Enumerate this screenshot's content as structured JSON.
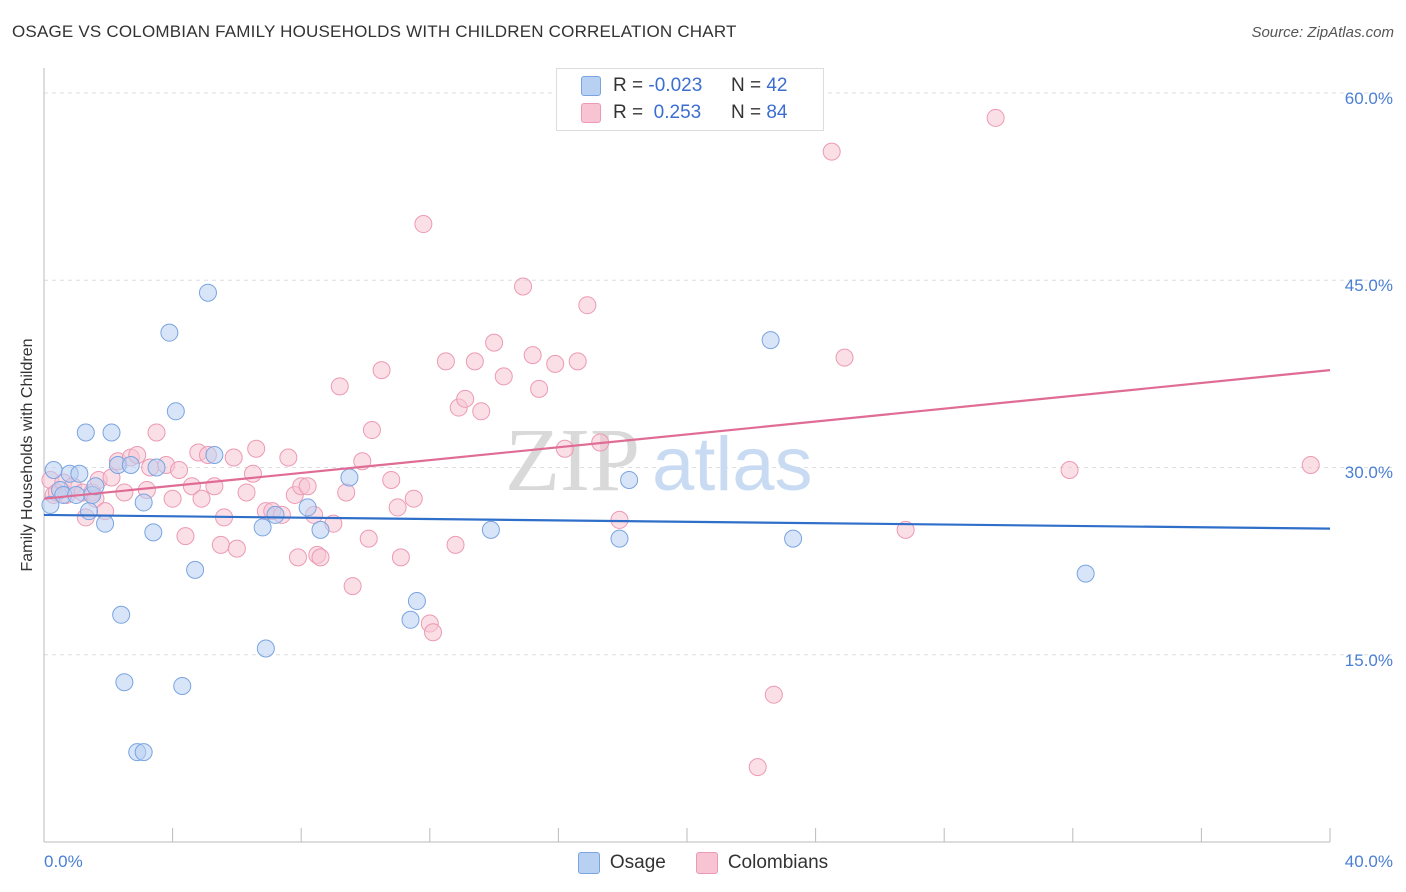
{
  "header": {
    "title": "OSAGE VS COLOMBIAN FAMILY HOUSEHOLDS WITH CHILDREN CORRELATION CHART",
    "source": "Source: ZipAtlas.com"
  },
  "legend_top": {
    "rows": [
      {
        "r_label": "R = ",
        "r_value": "-0.023",
        "n_label": "N = ",
        "n_value": "42"
      },
      {
        "r_label": "R = ",
        "r_value": " 0.253",
        "n_label": "N = ",
        "n_value": "84"
      }
    ]
  },
  "legend_bottom": {
    "osage": "Osage",
    "colombians": "Colombians"
  },
  "watermark": {
    "zip": "ZIP",
    "atlas": "atlas"
  },
  "colors": {
    "osage_fill": "#b8d0f2",
    "osage_stroke": "#7aa4e0",
    "osage_line": "#2f6fc9",
    "colombian_fill": "#f8c4d4",
    "colombian_stroke": "#ec9ab4",
    "colombian_line": "#e06c96",
    "axis_label": "#4a7fd4"
  },
  "chart_data": {
    "type": "scatter",
    "title": "OSAGE VS COLOMBIAN FAMILY HOUSEHOLDS WITH CHILDREN CORRELATION CHART",
    "xlabel": "",
    "ylabel": "Family Households with Children",
    "xlim": [
      0,
      40
    ],
    "ylim": [
      0,
      62
    ],
    "x_tick_labels": [
      "0.0%",
      "40.0%"
    ],
    "y_ticks": [
      15,
      30,
      45,
      60
    ],
    "y_tick_labels": [
      "15.0%",
      "30.0%",
      "45.0%",
      "60.0%"
    ],
    "grid": true,
    "legend_position": "top-center",
    "series": [
      {
        "name": "Osage",
        "r": -0.023,
        "n": 42,
        "trend": {
          "x": [
            0,
            40
          ],
          "y": [
            26.2,
            25.1
          ]
        },
        "points": [
          [
            0.2,
            27.0
          ],
          [
            0.3,
            29.8
          ],
          [
            0.5,
            28.2
          ],
          [
            0.6,
            27.8
          ],
          [
            0.8,
            29.5
          ],
          [
            1.0,
            27.8
          ],
          [
            1.1,
            29.5
          ],
          [
            1.3,
            32.8
          ],
          [
            1.4,
            26.5
          ],
          [
            1.5,
            27.8
          ],
          [
            1.6,
            28.5
          ],
          [
            1.9,
            25.5
          ],
          [
            2.1,
            32.8
          ],
          [
            2.3,
            30.2
          ],
          [
            2.4,
            18.2
          ],
          [
            2.5,
            12.8
          ],
          [
            2.7,
            30.2
          ],
          [
            2.9,
            7.2
          ],
          [
            3.1,
            7.2
          ],
          [
            3.1,
            27.2
          ],
          [
            3.4,
            24.8
          ],
          [
            3.5,
            30.0
          ],
          [
            3.9,
            40.8
          ],
          [
            4.1,
            34.5
          ],
          [
            4.3,
            12.5
          ],
          [
            4.7,
            21.8
          ],
          [
            5.1,
            44.0
          ],
          [
            5.3,
            31.0
          ],
          [
            6.8,
            25.2
          ],
          [
            6.9,
            15.5
          ],
          [
            7.2,
            26.2
          ],
          [
            8.2,
            26.8
          ],
          [
            8.6,
            25.0
          ],
          [
            9.5,
            29.2
          ],
          [
            11.4,
            17.8
          ],
          [
            11.6,
            19.3
          ],
          [
            13.9,
            25.0
          ],
          [
            17.9,
            24.3
          ],
          [
            18.2,
            29.0
          ],
          [
            22.6,
            40.2
          ],
          [
            23.3,
            24.3
          ],
          [
            32.4,
            21.5
          ]
        ]
      },
      {
        "name": "Colombians",
        "r": 0.253,
        "n": 84,
        "trend": {
          "x": [
            0,
            40
          ],
          "y": [
            27.5,
            37.8
          ]
        },
        "points": [
          [
            0.2,
            29.0
          ],
          [
            0.3,
            27.8
          ],
          [
            0.4,
            28.0
          ],
          [
            0.6,
            28.8
          ],
          [
            0.7,
            27.8
          ],
          [
            0.9,
            28.5
          ],
          [
            1.2,
            28.0
          ],
          [
            1.3,
            26.0
          ],
          [
            1.5,
            28.0
          ],
          [
            1.6,
            27.5
          ],
          [
            1.7,
            29.0
          ],
          [
            1.9,
            26.5
          ],
          [
            2.1,
            29.2
          ],
          [
            2.3,
            30.5
          ],
          [
            2.5,
            28.0
          ],
          [
            2.7,
            30.8
          ],
          [
            2.9,
            31.0
          ],
          [
            3.2,
            28.2
          ],
          [
            3.3,
            30.0
          ],
          [
            3.5,
            32.8
          ],
          [
            3.8,
            30.2
          ],
          [
            4.0,
            27.5
          ],
          [
            4.2,
            29.8
          ],
          [
            4.4,
            24.5
          ],
          [
            4.6,
            28.5
          ],
          [
            4.8,
            31.2
          ],
          [
            4.9,
            27.5
          ],
          [
            5.1,
            31.0
          ],
          [
            5.3,
            28.5
          ],
          [
            5.5,
            23.8
          ],
          [
            5.6,
            26.0
          ],
          [
            5.9,
            30.8
          ],
          [
            6.0,
            23.5
          ],
          [
            6.3,
            28.0
          ],
          [
            6.5,
            29.5
          ],
          [
            6.6,
            31.5
          ],
          [
            6.9,
            26.5
          ],
          [
            7.1,
            26.5
          ],
          [
            7.4,
            26.2
          ],
          [
            7.6,
            30.8
          ],
          [
            7.8,
            27.8
          ],
          [
            7.9,
            22.8
          ],
          [
            8.0,
            28.5
          ],
          [
            8.2,
            28.5
          ],
          [
            8.4,
            26.2
          ],
          [
            8.5,
            23.0
          ],
          [
            8.6,
            22.8
          ],
          [
            9.0,
            25.5
          ],
          [
            9.2,
            36.5
          ],
          [
            9.4,
            28.0
          ],
          [
            9.6,
            20.5
          ],
          [
            9.9,
            30.5
          ],
          [
            10.1,
            24.3
          ],
          [
            10.2,
            33.0
          ],
          [
            10.5,
            37.8
          ],
          [
            10.8,
            29.0
          ],
          [
            11.0,
            26.8
          ],
          [
            11.1,
            22.8
          ],
          [
            11.5,
            27.5
          ],
          [
            11.8,
            49.5
          ],
          [
            12.0,
            17.5
          ],
          [
            12.1,
            16.8
          ],
          [
            12.5,
            38.5
          ],
          [
            12.8,
            23.8
          ],
          [
            12.9,
            34.8
          ],
          [
            13.1,
            35.5
          ],
          [
            13.4,
            38.5
          ],
          [
            13.6,
            34.5
          ],
          [
            14.0,
            40.0
          ],
          [
            14.3,
            37.3
          ],
          [
            14.9,
            44.5
          ],
          [
            15.2,
            39.0
          ],
          [
            15.4,
            36.3
          ],
          [
            15.9,
            38.3
          ],
          [
            16.2,
            31.5
          ],
          [
            16.6,
            38.5
          ],
          [
            16.9,
            43.0
          ],
          [
            17.3,
            32.0
          ],
          [
            17.9,
            25.8
          ],
          [
            22.2,
            6.0
          ],
          [
            22.7,
            11.8
          ],
          [
            24.5,
            55.3
          ],
          [
            24.9,
            38.8
          ],
          [
            26.8,
            25.0
          ],
          [
            29.6,
            58.0
          ],
          [
            31.9,
            29.8
          ],
          [
            39.4,
            30.2
          ]
        ]
      }
    ]
  }
}
